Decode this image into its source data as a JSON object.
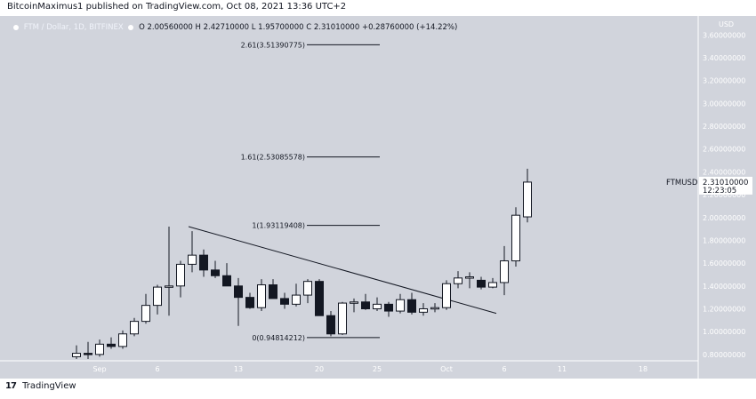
{
  "publisher_line": "BitcoinMaximus1 published on TradingView.com, Oct 08, 2021 13:36 UTC+2",
  "footer_brand": "TradingView",
  "legend": {
    "symbol": "FTM / Dollar, 1D, BITFINEX",
    "open": "O 2.00560000",
    "high": "H 2.42710000",
    "low": "L 1.95700000",
    "close": "C 2.31010000",
    "change": "+0.28760000 (+14.22%)"
  },
  "colors": {
    "background": "#d1d4dc",
    "up_candle": "#ffffff",
    "down_candle": "#131722",
    "wick": "#131722",
    "axis_text": "#ffffff",
    "lines": "#131722"
  },
  "chart_data": {
    "type": "candlestick",
    "title": "FTM / Dollar, 1D, BITFINEX",
    "y_axis_label": "USD",
    "y_ticks": [
      "0.80000000",
      "1.00000000",
      "1.20000000",
      "1.40000000",
      "1.60000000",
      "1.80000000",
      "2.00000000",
      "2.20000000",
      "2.40000000",
      "2.60000000",
      "2.80000000",
      "3.00000000",
      "3.20000000",
      "3.40000000",
      "3.60000000"
    ],
    "ylim": [
      0.76,
      3.68
    ],
    "x_ticks": [
      {
        "label": "Sep",
        "day": 0
      },
      {
        "label": "6",
        "day": 5
      },
      {
        "label": "13",
        "day": 12
      },
      {
        "label": "20",
        "day": 19
      },
      {
        "label": "25",
        "day": 24
      },
      {
        "label": "Oct",
        "day": 30
      },
      {
        "label": "6",
        "day": 35
      },
      {
        "label": "11",
        "day": 40
      },
      {
        "label": "18",
        "day": 47
      }
    ],
    "candles": [
      {
        "day": -2,
        "o": 0.78,
        "h": 0.88,
        "l": 0.76,
        "c": 0.81
      },
      {
        "day": -1,
        "o": 0.81,
        "h": 0.91,
        "l": 0.76,
        "c": 0.8
      },
      {
        "day": 0,
        "o": 0.8,
        "h": 0.93,
        "l": 0.78,
        "c": 0.89
      },
      {
        "day": 1,
        "o": 0.89,
        "h": 0.95,
        "l": 0.85,
        "c": 0.87
      },
      {
        "day": 2,
        "o": 0.87,
        "h": 1.01,
        "l": 0.85,
        "c": 0.98
      },
      {
        "day": 3,
        "o": 0.98,
        "h": 1.12,
        "l": 0.96,
        "c": 1.09
      },
      {
        "day": 4,
        "o": 1.09,
        "h": 1.33,
        "l": 1.07,
        "c": 1.23
      },
      {
        "day": 5,
        "o": 1.23,
        "h": 1.41,
        "l": 1.15,
        "c": 1.39
      },
      {
        "day": 6,
        "o": 1.39,
        "h": 1.92,
        "l": 1.14,
        "c": 1.4
      },
      {
        "day": 7,
        "o": 1.4,
        "h": 1.62,
        "l": 1.3,
        "c": 1.59
      },
      {
        "day": 8,
        "o": 1.59,
        "h": 1.88,
        "l": 1.52,
        "c": 1.67
      },
      {
        "day": 9,
        "o": 1.67,
        "h": 1.72,
        "l": 1.48,
        "c": 1.54
      },
      {
        "day": 10,
        "o": 1.54,
        "h": 1.62,
        "l": 1.47,
        "c": 1.49
      },
      {
        "day": 11,
        "o": 1.49,
        "h": 1.6,
        "l": 1.4,
        "c": 1.4
      },
      {
        "day": 12,
        "o": 1.4,
        "h": 1.47,
        "l": 1.05,
        "c": 1.3
      },
      {
        "day": 13,
        "o": 1.3,
        "h": 1.34,
        "l": 1.2,
        "c": 1.21
      },
      {
        "day": 14,
        "o": 1.21,
        "h": 1.46,
        "l": 1.18,
        "c": 1.41
      },
      {
        "day": 15,
        "o": 1.41,
        "h": 1.46,
        "l": 1.29,
        "c": 1.29
      },
      {
        "day": 16,
        "o": 1.29,
        "h": 1.34,
        "l": 1.2,
        "c": 1.24
      },
      {
        "day": 17,
        "o": 1.24,
        "h": 1.42,
        "l": 1.22,
        "c": 1.32
      },
      {
        "day": 18,
        "o": 1.32,
        "h": 1.46,
        "l": 1.25,
        "c": 1.44
      },
      {
        "day": 19,
        "o": 1.44,
        "h": 1.46,
        "l": 1.14,
        "c": 1.14
      },
      {
        "day": 20,
        "o": 1.14,
        "h": 1.18,
        "l": 0.96,
        "c": 0.98
      },
      {
        "day": 21,
        "o": 0.98,
        "h": 1.26,
        "l": 0.97,
        "c": 1.25
      },
      {
        "day": 22,
        "o": 1.25,
        "h": 1.29,
        "l": 1.17,
        "c": 1.26
      },
      {
        "day": 23,
        "o": 1.26,
        "h": 1.33,
        "l": 1.19,
        "c": 1.2
      },
      {
        "day": 24,
        "o": 1.2,
        "h": 1.3,
        "l": 1.18,
        "c": 1.24
      },
      {
        "day": 25,
        "o": 1.24,
        "h": 1.26,
        "l": 1.13,
        "c": 1.18
      },
      {
        "day": 26,
        "o": 1.18,
        "h": 1.33,
        "l": 1.16,
        "c": 1.28
      },
      {
        "day": 27,
        "o": 1.28,
        "h": 1.34,
        "l": 1.15,
        "c": 1.17
      },
      {
        "day": 28,
        "o": 1.17,
        "h": 1.25,
        "l": 1.14,
        "c": 1.2
      },
      {
        "day": 29,
        "o": 1.2,
        "h": 1.25,
        "l": 1.17,
        "c": 1.21
      },
      {
        "day": 30,
        "o": 1.21,
        "h": 1.45,
        "l": 1.19,
        "c": 1.42
      },
      {
        "day": 31,
        "o": 1.42,
        "h": 1.53,
        "l": 1.38,
        "c": 1.47
      },
      {
        "day": 32,
        "o": 1.47,
        "h": 1.52,
        "l": 1.38,
        "c": 1.48
      },
      {
        "day": 33,
        "o": 1.45,
        "h": 1.48,
        "l": 1.37,
        "c": 1.39
      },
      {
        "day": 34,
        "o": 1.39,
        "h": 1.47,
        "l": 1.38,
        "c": 1.43
      },
      {
        "day": 35,
        "o": 1.43,
        "h": 1.75,
        "l": 1.32,
        "c": 1.62
      },
      {
        "day": 36,
        "o": 1.62,
        "h": 2.09,
        "l": 1.57,
        "c": 2.02
      },
      {
        "day": 37,
        "o": 2.0056,
        "h": 2.4271,
        "l": 1.957,
        "c": 2.3101
      }
    ],
    "trendline": {
      "from": {
        "day": 8,
        "price": 1.92
      },
      "to": {
        "day": 32,
        "price": 1.16
      }
    },
    "fib_levels": [
      {
        "label": "0(0.94814212)",
        "price": 0.94814212
      },
      {
        "label": "1(1.93119408)",
        "price": 1.93119408
      },
      {
        "label": "1.61(2.53085578)",
        "price": 2.53085578
      },
      {
        "label": "2.61(3.51390775)",
        "price": 3.51390775
      }
    ],
    "last_price": {
      "symbol": "FTMUSD",
      "price_text": "2.31010000",
      "countdown": "12:23:05",
      "price": 2.3101
    }
  }
}
